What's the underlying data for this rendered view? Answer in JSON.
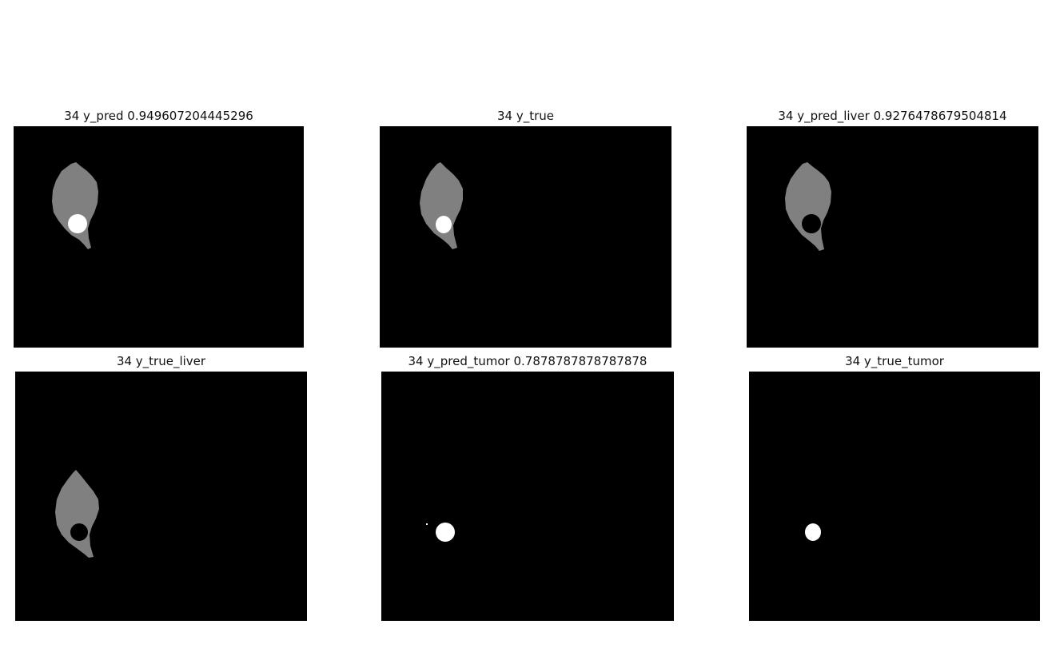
{
  "panels": [
    {
      "title": "34 y_pred 0.949607204445296",
      "mask": "liver-with-tumor"
    },
    {
      "title": "34 y_true",
      "mask": "liver-with-tumor"
    },
    {
      "title": "34 y_pred_liver 0.9276478679504814",
      "mask": "liver-with-hole"
    },
    {
      "title": "34 y_true_liver",
      "mask": "liver-with-hole"
    },
    {
      "title": "34 y_pred_tumor 0.7878787878787878",
      "mask": "tumor-only"
    },
    {
      "title": "34 y_true_tumor",
      "mask": "tumor-only"
    }
  ],
  "colors": {
    "background": "#000000",
    "liver": "#808080",
    "tumor": "#ffffff"
  }
}
